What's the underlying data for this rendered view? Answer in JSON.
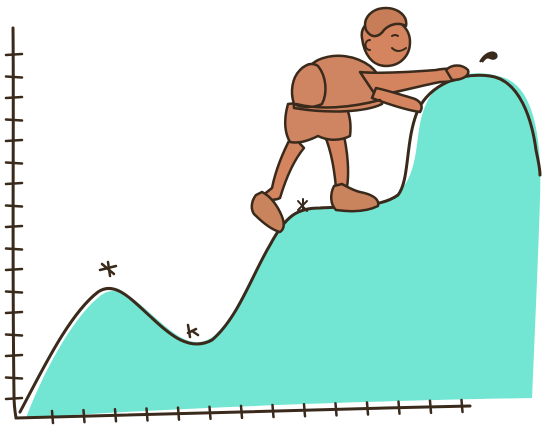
{
  "illustration": {
    "colors": {
      "mountain_fill": "#72e6d3",
      "ink": "#3a2a1c",
      "skin": "#d4845f",
      "clothing": "#cf8462",
      "hair": "#c77d58",
      "boots": "#c9845e",
      "background": "#ffffff"
    },
    "icons": [
      "peak-flag-icon",
      "grass-tuft-icon",
      "hiker-figure"
    ]
  }
}
